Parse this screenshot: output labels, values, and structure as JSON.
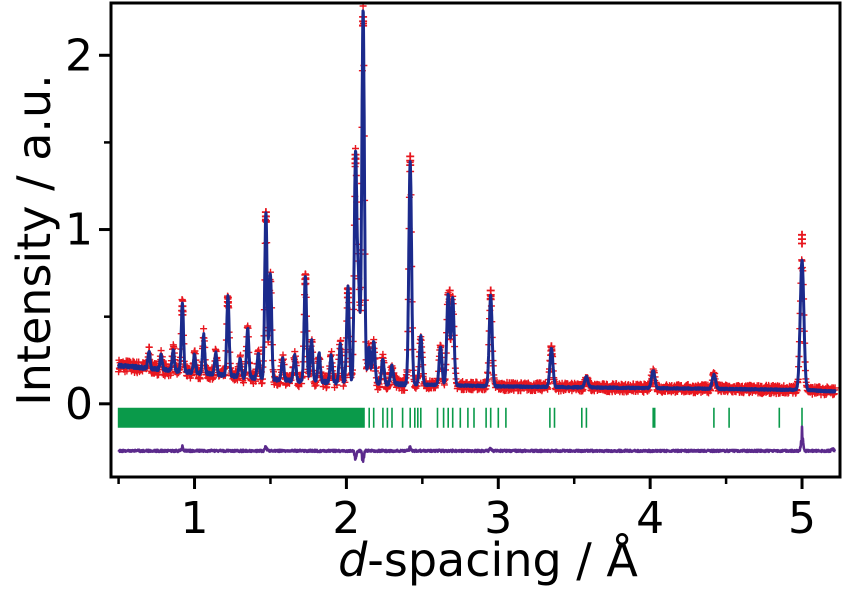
{
  "chart_data": {
    "type": "line",
    "title": "",
    "xlabel_italic": "d",
    "xlabel_rest": "-spacing / Å",
    "ylabel": "Intensity / a.u.",
    "xlim": [
      0.45,
      5.25
    ],
    "ylim": [
      -0.42,
      2.3
    ],
    "x_ticks": [
      1,
      2,
      3,
      4,
      5
    ],
    "y_ticks": [
      0,
      1,
      2
    ],
    "grid": false,
    "legend": "none",
    "colors": {
      "observed": "#e8161e",
      "calculated": "#1b2a8c",
      "difference": "#5b2a8c",
      "reflections": "#0a9a4a",
      "axis": "#000000"
    },
    "background": [
      [
        0.5,
        0.22
      ],
      [
        1.0,
        0.18
      ],
      [
        1.5,
        0.14
      ],
      [
        2.0,
        0.12
      ],
      [
        2.5,
        0.11
      ],
      [
        3.0,
        0.1
      ],
      [
        4.0,
        0.09
      ],
      [
        5.0,
        0.08
      ],
      [
        5.25,
        0.07
      ]
    ],
    "peaks": [
      {
        "d": 0.7,
        "height": 0.1
      },
      {
        "d": 0.78,
        "height": 0.08
      },
      {
        "d": 0.86,
        "height": 0.12
      },
      {
        "d": 0.92,
        "height": 0.4
      },
      {
        "d": 1.0,
        "height": 0.1
      },
      {
        "d": 1.06,
        "height": 0.22
      },
      {
        "d": 1.14,
        "height": 0.12
      },
      {
        "d": 1.22,
        "height": 0.46
      },
      {
        "d": 1.3,
        "height": 0.1
      },
      {
        "d": 1.35,
        "height": 0.28
      },
      {
        "d": 1.42,
        "height": 0.14
      },
      {
        "d": 1.47,
        "height": 0.96
      },
      {
        "d": 1.5,
        "height": 0.6
      },
      {
        "d": 1.58,
        "height": 0.12
      },
      {
        "d": 1.66,
        "height": 0.14
      },
      {
        "d": 1.73,
        "height": 0.6
      },
      {
        "d": 1.77,
        "height": 0.24
      },
      {
        "d": 1.82,
        "height": 0.16
      },
      {
        "d": 1.9,
        "height": 0.15
      },
      {
        "d": 1.96,
        "height": 0.22
      },
      {
        "d": 2.01,
        "height": 0.55
      },
      {
        "d": 2.06,
        "height": 1.3
      },
      {
        "d": 2.08,
        "height": 0.55
      },
      {
        "d": 2.11,
        "height": 2.14
      },
      {
        "d": 2.15,
        "height": 0.2
      },
      {
        "d": 2.18,
        "height": 0.24
      },
      {
        "d": 2.24,
        "height": 0.14
      },
      {
        "d": 2.3,
        "height": 0.1
      },
      {
        "d": 2.42,
        "height": 1.28
      },
      {
        "d": 2.49,
        "height": 0.28
      },
      {
        "d": 2.62,
        "height": 0.22
      },
      {
        "d": 2.67,
        "height": 0.52
      },
      {
        "d": 2.7,
        "height": 0.5
      },
      {
        "d": 2.95,
        "height": 0.52
      },
      {
        "d": 3.35,
        "height": 0.22
      },
      {
        "d": 3.58,
        "height": 0.06
      },
      {
        "d": 4.02,
        "height": 0.1
      },
      {
        "d": 4.42,
        "height": 0.08
      },
      {
        "d": 5.0,
        "height": 0.74
      }
    ],
    "observed_peak_tops": [
      {
        "d": 2.11,
        "y": 2.22
      },
      {
        "d": 2.06,
        "y": 1.43
      },
      {
        "d": 2.42,
        "y": 1.42
      },
      {
        "d": 1.47,
        "y": 1.1
      },
      {
        "d": 5.0,
        "y": 0.97
      },
      {
        "d": 1.73,
        "y": 0.74
      },
      {
        "d": 2.01,
        "y": 0.66
      },
      {
        "d": 2.68,
        "y": 0.65
      },
      {
        "d": 2.95,
        "y": 0.65
      },
      {
        "d": 1.22,
        "y": 0.61
      },
      {
        "d": 0.92,
        "y": 0.56
      },
      {
        "d": 3.35,
        "y": 0.33
      }
    ],
    "reflection_y": -0.08,
    "reflection_ticks": [
      2.15,
      2.18,
      2.24,
      2.27,
      2.3,
      2.37,
      2.42,
      2.45,
      2.47,
      2.49,
      2.6,
      2.64,
      2.67,
      2.7,
      2.75,
      2.8,
      2.84,
      2.92,
      2.95,
      3.0,
      3.05,
      3.34,
      3.37,
      3.55,
      3.58,
      4.02,
      4.03,
      4.42,
      4.52,
      4.85,
      5.0
    ],
    "reflection_band": [
      0.5,
      2.12
    ],
    "difference_offset": -0.27,
    "difference_spikes": [
      {
        "d": 0.92,
        "value": 0.02
      },
      {
        "d": 1.47,
        "value": 0.02
      },
      {
        "d": 2.06,
        "value": -0.04
      },
      {
        "d": 2.11,
        "value": -0.06
      },
      {
        "d": 2.42,
        "value": 0.02
      },
      {
        "d": 2.95,
        "value": 0.015
      },
      {
        "d": 5.0,
        "value": 0.1
      },
      {
        "d": 5.2,
        "value": 0.015
      }
    ]
  }
}
